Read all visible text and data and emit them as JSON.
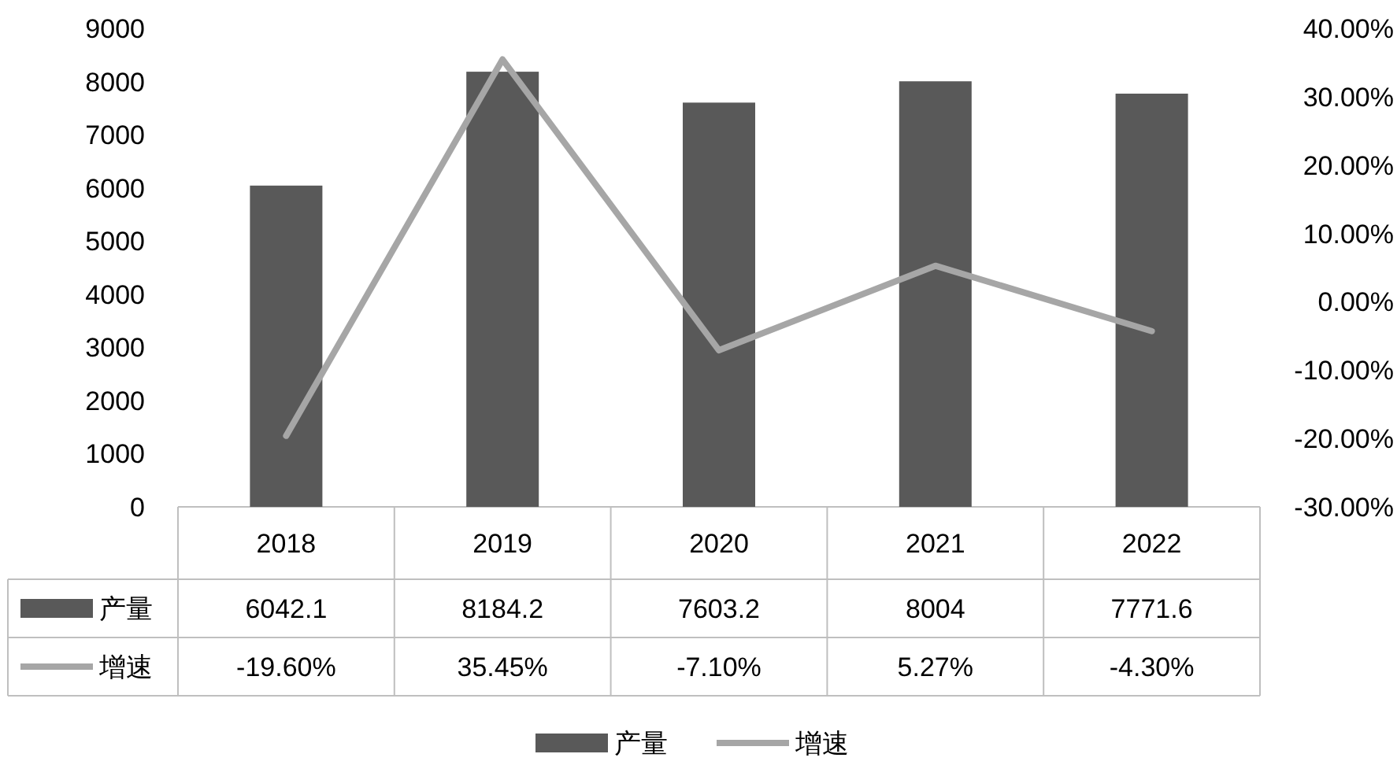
{
  "chart_data": {
    "type": "bar",
    "categories": [
      "2018",
      "2019",
      "2020",
      "2021",
      "2022"
    ],
    "series": [
      {
        "name": "产量",
        "color": "#595959",
        "values": [
          6042.1,
          8184.2,
          7603.2,
          8004,
          7771.6
        ],
        "value_labels": [
          "6042.1",
          "8184.2",
          "7603.2",
          "8004",
          "7771.6"
        ]
      },
      {
        "name": "增速",
        "type": "line",
        "axis": "y2",
        "color": "#a6a6a6",
        "values": [
          -19.6,
          35.45,
          -7.1,
          5.27,
          -4.3
        ],
        "value_labels": [
          "-19.60%",
          "35.45%",
          "-7.10%",
          "5.27%",
          "-4.30%"
        ]
      }
    ],
    "ylim": [
      0,
      9000
    ],
    "yticks": [
      0,
      1000,
      2000,
      3000,
      4000,
      5000,
      6000,
      7000,
      8000,
      9000
    ],
    "y2lim": [
      -30,
      40
    ],
    "y2ticks": [
      {
        "value": -30,
        "label": "-30.00%"
      },
      {
        "value": -20,
        "label": "-20.00%"
      },
      {
        "value": -10,
        "label": "-10.00%"
      },
      {
        "value": 0,
        "label": "0.00%"
      },
      {
        "value": 10,
        "label": "10.00%"
      },
      {
        "value": 20,
        "label": "20.00%"
      },
      {
        "value": 30,
        "label": "30.00%"
      },
      {
        "value": 40,
        "label": "40.00%"
      }
    ],
    "legend": "bottom",
    "grid": false
  }
}
